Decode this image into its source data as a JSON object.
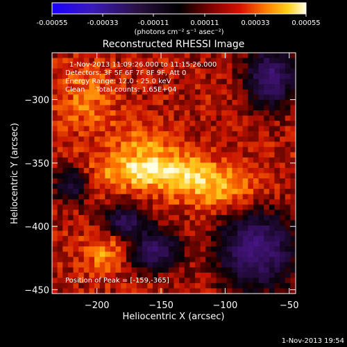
{
  "colorbar": {
    "tick_labels": [
      "-0.00055",
      "-0.00033",
      "-0.00011",
      "0.00011",
      "0.00033",
      "0.00055"
    ],
    "range": [
      -0.00055,
      0.00055
    ],
    "units_label": "(photons cm⁻² s⁻¹ asec⁻²)"
  },
  "chart_data": {
    "type": "heatmap",
    "title": "Reconstructed RHESSI Image",
    "xlabel": "Heliocentric X (arcsec)",
    "ylabel": "Heliocentric Y (arcsec)",
    "xlim": [
      -235,
      -45
    ],
    "ylim": [
      -453,
      -263
    ],
    "x_ticks": [
      -200,
      -150,
      -100,
      -50
    ],
    "y_ticks": [
      -300,
      -350,
      -400,
      -450
    ],
    "annotations": [
      "1-Nov-2013 11:09:26.000 to 11:15:26.000",
      "Detectors: 3F 5F 6F 7F 8F 9F, Att 0",
      "Energy Range: 12.0 - 25.0 keV",
      "Clean     Total counts: 1.65E+04"
    ],
    "peak_label": "Position of Peak = [-159,-365]",
    "peak": [
      -159,
      -365
    ],
    "colormap": "diverging: purple (negative) / black (zero) / red-orange-yellow-white (positive)"
  },
  "footer": {
    "timestamp": "1-Nov-2013 19:54"
  }
}
